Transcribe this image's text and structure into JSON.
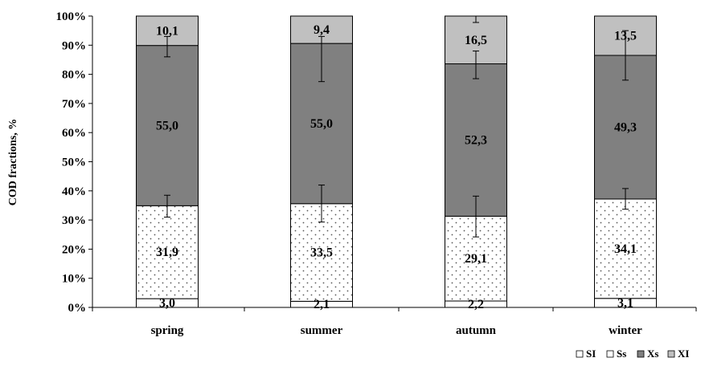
{
  "chart_data": {
    "type": "bar",
    "stacked": true,
    "percent": true,
    "ylabel": "COD fractions, %",
    "xlabel": "",
    "ylim": [
      0,
      100
    ],
    "yticks": [
      "0%",
      "10%",
      "20%",
      "30%",
      "40%",
      "50%",
      "60%",
      "70%",
      "80%",
      "90%",
      "100%"
    ],
    "categories": [
      "spring",
      "summer",
      "autumn",
      "winter"
    ],
    "series": [
      {
        "name": "SI",
        "fill": "white",
        "values": [
          3.0,
          2.1,
          2.2,
          3.1
        ],
        "labels": [
          "3,0",
          "2,1",
          "2,2",
          "3,1"
        ]
      },
      {
        "name": "Ss",
        "fill": "dots",
        "values": [
          31.9,
          33.5,
          29.1,
          34.1
        ],
        "labels": [
          "31,9",
          "33,5",
          "29,1",
          "34,1"
        ],
        "error_bars": [
          [
            31.0,
            38.5
          ],
          [
            29.3,
            42.0
          ],
          [
            24.2,
            38.2
          ],
          [
            33.7,
            40.8
          ]
        ]
      },
      {
        "name": "Xs",
        "fill": "#808080",
        "values": [
          55.0,
          55.0,
          52.3,
          49.3
        ],
        "labels": [
          "55,0",
          "55,0",
          "52,3",
          "49,3"
        ],
        "error_bars": [
          [
            86.0,
            93.0
          ],
          [
            77.5,
            93.0
          ],
          [
            78.5,
            88.0
          ],
          [
            78.0,
            95.0
          ]
        ]
      },
      {
        "name": "XI",
        "fill": "#c0c0c0",
        "values": [
          10.1,
          9.4,
          16.5,
          13.5
        ],
        "labels": [
          "10,1",
          "9,4",
          "16,5",
          "13,5"
        ],
        "error_bars": [
          [
            100,
            100
          ],
          [
            100,
            100
          ],
          [
            97.8,
            100
          ],
          [
            100,
            100
          ]
        ]
      }
    ],
    "grid": false,
    "legend": "bottom-right",
    "colors": {
      "axis": "#000000",
      "xs": "#808080",
      "xi": "#c0c0c0",
      "white": "#ffffff",
      "dots": "#555555"
    }
  }
}
